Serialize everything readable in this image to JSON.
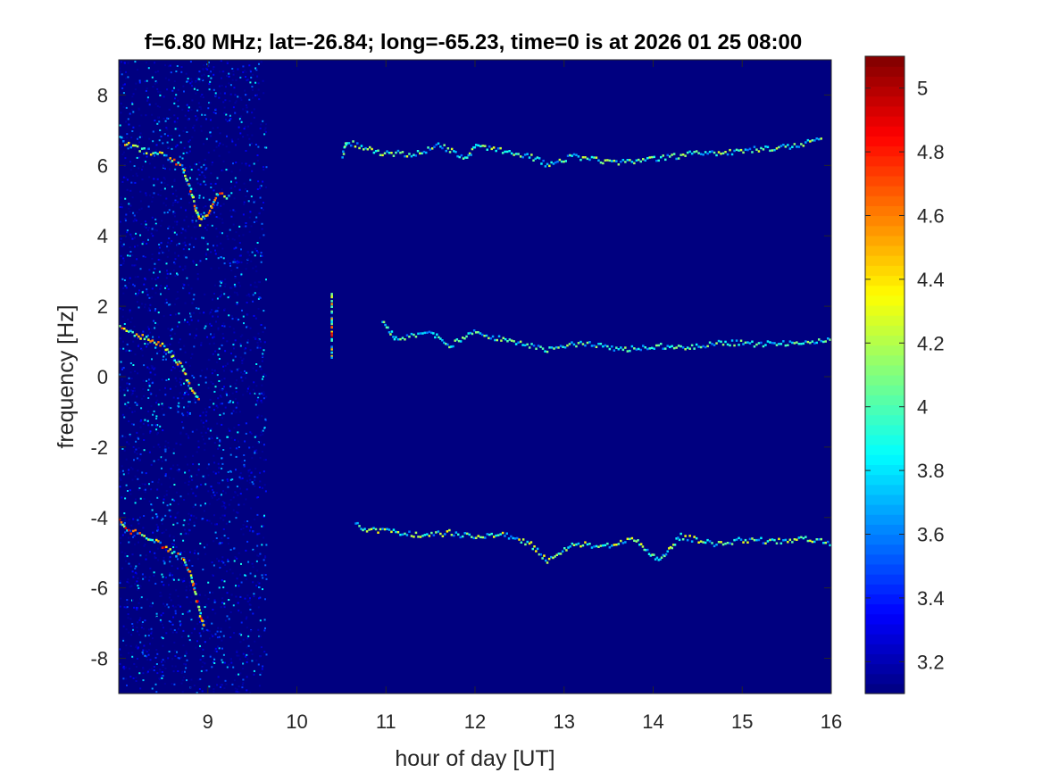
{
  "chart_data": {
    "type": "heatmap",
    "title": "f=6.80 MHz;  lat=-26.84; long=-65.23, time=0 is at 2026 01 25 08:00",
    "xlabel": "hour of day [UT]",
    "ylabel": "frequency [Hz]",
    "xlim": [
      8.0,
      16.0
    ],
    "ylim": [
      -9.0,
      9.0
    ],
    "xticks": [
      9,
      10,
      11,
      12,
      13,
      14,
      15,
      16
    ],
    "yticks": [
      -8,
      -6,
      -4,
      -2,
      0,
      2,
      4,
      6,
      8
    ],
    "colorbar": {
      "colormap": "jet",
      "range": [
        3.1,
        5.1
      ],
      "ticks": [
        3.2,
        3.4,
        3.6,
        3.8,
        4.0,
        4.2,
        4.4,
        4.6,
        4.8,
        5.0
      ],
      "tick_labels": [
        "3.2",
        "3.4",
        "3.6",
        "3.8",
        "4",
        "4.2",
        "4.4",
        "4.6",
        "4.8",
        "5"
      ]
    },
    "background_level": 3.1,
    "noise_region": {
      "x": [
        8.0,
        9.65
      ]
    },
    "series": [
      {
        "points": [
          [
            8.0,
            6.8
          ],
          [
            8.1,
            6.6
          ],
          [
            8.3,
            6.45
          ],
          [
            8.5,
            6.3
          ],
          [
            8.7,
            6.0
          ],
          [
            8.8,
            5.3
          ],
          [
            8.9,
            4.4
          ],
          [
            9.0,
            4.7
          ],
          [
            9.1,
            5.2
          ],
          [
            9.25,
            5.1
          ]
        ],
        "peak": 4.8
      },
      {
        "points": [
          [
            8.0,
            1.4
          ],
          [
            8.1,
            1.3
          ],
          [
            8.3,
            1.1
          ],
          [
            8.5,
            0.9
          ],
          [
            8.7,
            0.3
          ],
          [
            8.8,
            -0.3
          ],
          [
            8.9,
            -0.7
          ]
        ],
        "peak": 4.7
      },
      {
        "points": [
          [
            8.0,
            -4.1
          ],
          [
            8.1,
            -4.35
          ],
          [
            8.3,
            -4.5
          ],
          [
            8.5,
            -4.8
          ],
          [
            8.7,
            -5.1
          ],
          [
            8.8,
            -5.6
          ],
          [
            8.9,
            -6.7
          ],
          [
            8.95,
            -7.1
          ]
        ],
        "peak": 5.0
      },
      {
        "points": [
          [
            10.5,
            6.3
          ],
          [
            10.55,
            6.7
          ],
          [
            10.9,
            6.4
          ],
          [
            11.3,
            6.35
          ],
          [
            11.6,
            6.6
          ],
          [
            11.9,
            6.2
          ],
          [
            12.0,
            6.6
          ],
          [
            12.4,
            6.4
          ],
          [
            12.6,
            6.3
          ],
          [
            12.8,
            6.05
          ],
          [
            13.1,
            6.3
          ],
          [
            13.5,
            6.1
          ],
          [
            14.0,
            6.2
          ],
          [
            14.4,
            6.35
          ],
          [
            14.8,
            6.4
          ],
          [
            15.2,
            6.5
          ],
          [
            15.6,
            6.6
          ],
          [
            15.9,
            6.8
          ]
        ],
        "peak": 4.3
      },
      {
        "points": [
          [
            10.95,
            1.6
          ],
          [
            11.1,
            1.1
          ],
          [
            11.5,
            1.3
          ],
          [
            11.7,
            0.9
          ],
          [
            12.0,
            1.3
          ],
          [
            12.4,
            1.0
          ],
          [
            12.8,
            0.8
          ],
          [
            13.2,
            1.0
          ],
          [
            13.6,
            0.8
          ],
          [
            14.0,
            0.9
          ],
          [
            14.4,
            0.85
          ],
          [
            14.8,
            1.0
          ],
          [
            15.2,
            0.95
          ],
          [
            15.6,
            1.0
          ],
          [
            16.0,
            1.05
          ]
        ],
        "peak": 4.2
      },
      {
        "points": [
          [
            10.65,
            -4.1
          ],
          [
            10.75,
            -4.3
          ],
          [
            11.1,
            -4.4
          ],
          [
            11.4,
            -4.5
          ],
          [
            11.7,
            -4.4
          ],
          [
            12.0,
            -4.55
          ],
          [
            12.3,
            -4.45
          ],
          [
            12.6,
            -4.7
          ],
          [
            12.8,
            -5.2
          ],
          [
            13.1,
            -4.7
          ],
          [
            13.4,
            -4.8
          ],
          [
            13.8,
            -4.6
          ],
          [
            14.05,
            -5.2
          ],
          [
            14.3,
            -4.5
          ],
          [
            14.7,
            -4.75
          ],
          [
            15.0,
            -4.6
          ],
          [
            15.4,
            -4.65
          ],
          [
            15.7,
            -4.55
          ],
          [
            16.0,
            -4.7
          ]
        ],
        "peak": 4.4
      },
      {
        "points": [
          [
            10.38,
            2.4
          ],
          [
            10.38,
            0.5
          ]
        ],
        "peak": 5.1
      }
    ]
  }
}
